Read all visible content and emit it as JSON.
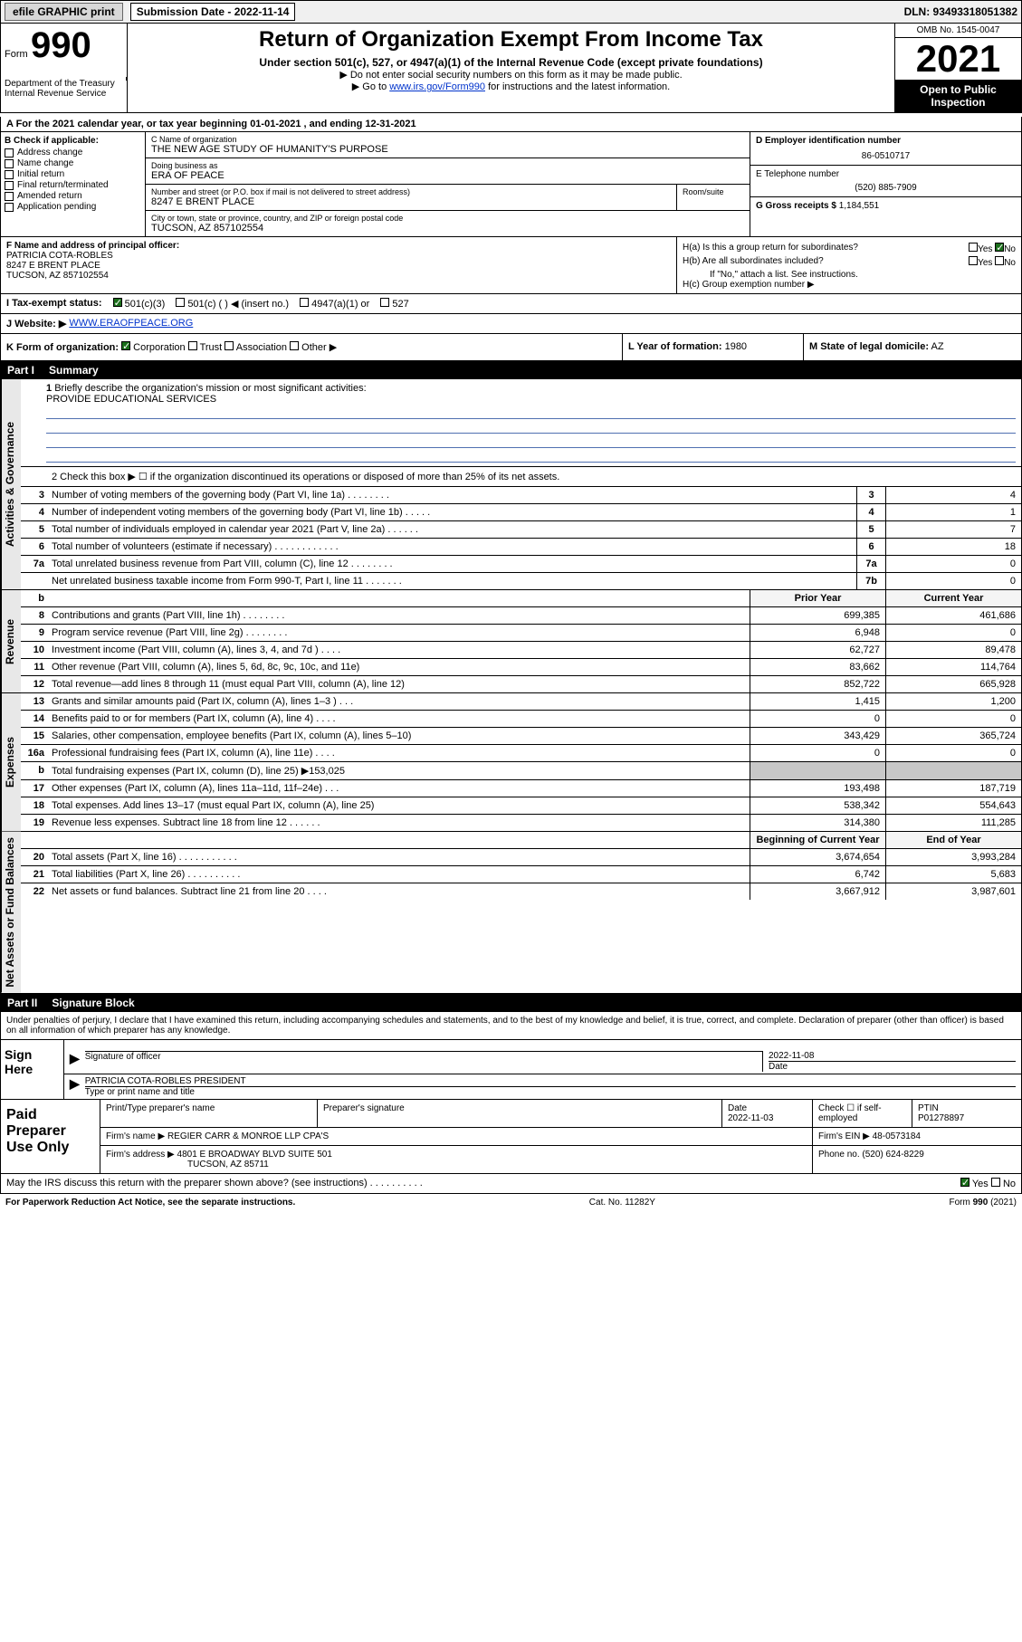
{
  "top": {
    "efile": "efile GRAPHIC print",
    "sub_label": "Submission Date - 2022-11-14",
    "dln": "DLN: 93493318051382"
  },
  "header": {
    "form_word": "Form",
    "form_no": "990",
    "title": "Return of Organization Exempt From Income Tax",
    "sub1": "Under section 501(c), 527, or 4947(a)(1) of the Internal Revenue Code (except private foundations)",
    "sub2": "▶ Do not enter social security numbers on this form as it may be made public.",
    "sub3_pre": "▶ Go to ",
    "sub3_link": "www.irs.gov/Form990",
    "sub3_post": " for instructions and the latest information.",
    "omb": "OMB No. 1545-0047",
    "year": "2021",
    "open": "Open to Public Inspection",
    "dept": "Department of the Treasury\nInternal Revenue Service"
  },
  "line_a": "A For the 2021 calendar year, or tax year beginning 01-01-2021  , and ending 12-31-2021",
  "col_b": {
    "hdr": "B Check if applicable:",
    "items": [
      "Address change",
      "Name change",
      "Initial return",
      "Final return/terminated",
      "Amended return",
      "Application pending"
    ]
  },
  "col_c": {
    "name_lbl": "C Name of organization",
    "name": "THE NEW AGE STUDY OF HUMANITY'S PURPOSE",
    "dba_lbl": "Doing business as",
    "dba": "ERA OF PEACE",
    "addr_lbl": "Number and street (or P.O. box if mail is not delivered to street address)",
    "addr": "8247 E BRENT PLACE",
    "room_lbl": "Room/suite",
    "city_lbl": "City or town, state or province, country, and ZIP or foreign postal code",
    "city": "TUCSON, AZ  857102554"
  },
  "col_de": {
    "d_lbl": "D Employer identification number",
    "d_val": "86-0510717",
    "e_lbl": "E Telephone number",
    "e_val": "(520) 885-7909",
    "g_lbl": "G Gross receipts $",
    "g_val": "1,184,551"
  },
  "f": {
    "lbl": "F Name and address of principal officer:",
    "name": "PATRICIA COTA-ROBLES",
    "addr1": "8247 E BRENT PLACE",
    "addr2": "TUCSON, AZ  857102554"
  },
  "h": {
    "a": "H(a)  Is this a group return for subordinates?",
    "a_yes": "Yes",
    "a_no": "No",
    "b": "H(b)  Are all subordinates included?",
    "b_yes": "Yes",
    "b_no": "No",
    "b_note": "If \"No,\" attach a list. See instructions.",
    "c": "H(c)  Group exemption number ▶"
  },
  "i": {
    "lbl": "I   Tax-exempt status:",
    "o1": "501(c)(3)",
    "o2": "501(c) (  ) ◀ (insert no.)",
    "o3": "4947(a)(1) or",
    "o4": "527"
  },
  "j": {
    "lbl": "J   Website: ▶",
    "val": "WWW.ERAOFPEACE.ORG"
  },
  "k": {
    "lbl": "K Form of organization:",
    "corp": "Corporation",
    "trust": "Trust",
    "assoc": "Association",
    "other": "Other ▶"
  },
  "l": {
    "lbl": "L Year of formation:",
    "val": "1980"
  },
  "m": {
    "lbl": "M State of legal domicile:",
    "val": "AZ"
  },
  "part1": {
    "pn": "Part I",
    "pt": "Summary"
  },
  "brief": {
    "num": "1",
    "q": "Briefly describe the organization's mission or most significant activities:",
    "a": "PROVIDE EDUCATIONAL SERVICES"
  },
  "note2": "2  Check this box ▶ ☐  if the organization discontinued its operations or disposed of more than 25% of its net assets.",
  "side": {
    "gov": "Activities & Governance",
    "rev": "Revenue",
    "exp": "Expenses",
    "net": "Net Assets or Fund Balances"
  },
  "gov_rows": [
    {
      "n": "3",
      "d": "Number of voting members of the governing body (Part VI, line 1a)   .   .   .   .   .   .   .   .",
      "b": "3",
      "v": "4"
    },
    {
      "n": "4",
      "d": "Number of independent voting members of the governing body (Part VI, line 1b)   .   .   .   .   .",
      "b": "4",
      "v": "1"
    },
    {
      "n": "5",
      "d": "Total number of individuals employed in calendar year 2021 (Part V, line 2a)   .   .   .   .   .   .",
      "b": "5",
      "v": "7"
    },
    {
      "n": "6",
      "d": "Total number of volunteers (estimate if necessary)   .   .   .   .   .   .   .   .   .   .   .   .",
      "b": "6",
      "v": "18"
    },
    {
      "n": "7a",
      "d": "Total unrelated business revenue from Part VIII, column (C), line 12   .   .   .   .   .   .   .   .",
      "b": "7a",
      "v": "0"
    },
    {
      "n": "",
      "d": "Net unrelated business taxable income from Form 990-T, Part I, line 11   .   .   .   .   .   .   .",
      "b": "7b",
      "v": "0"
    }
  ],
  "rev_hdr": {
    "py": "Prior Year",
    "cy": "Current Year"
  },
  "rev_rows": [
    {
      "n": "8",
      "d": "Contributions and grants (Part VIII, line 1h)   .   .   .   .   .   .   .   .",
      "py": "699,385",
      "cy": "461,686"
    },
    {
      "n": "9",
      "d": "Program service revenue (Part VIII, line 2g)   .   .   .   .   .   .   .   .",
      "py": "6,948",
      "cy": "0"
    },
    {
      "n": "10",
      "d": "Investment income (Part VIII, column (A), lines 3, 4, and 7d )   .   .   .   .",
      "py": "62,727",
      "cy": "89,478"
    },
    {
      "n": "11",
      "d": "Other revenue (Part VIII, column (A), lines 5, 6d, 8c, 9c, 10c, and 11e)",
      "py": "83,662",
      "cy": "114,764"
    },
    {
      "n": "12",
      "d": "Total revenue—add lines 8 through 11 (must equal Part VIII, column (A), line 12)",
      "py": "852,722",
      "cy": "665,928"
    }
  ],
  "exp_rows": [
    {
      "n": "13",
      "d": "Grants and similar amounts paid (Part IX, column (A), lines 1–3 )   .   .   .",
      "py": "1,415",
      "cy": "1,200"
    },
    {
      "n": "14",
      "d": "Benefits paid to or for members (Part IX, column (A), line 4)   .   .   .   .",
      "py": "0",
      "cy": "0"
    },
    {
      "n": "15",
      "d": "Salaries, other compensation, employee benefits (Part IX, column (A), lines 5–10)",
      "py": "343,429",
      "cy": "365,724"
    },
    {
      "n": "16a",
      "d": "Professional fundraising fees (Part IX, column (A), line 11e)   .   .   .   .",
      "py": "0",
      "cy": "0"
    },
    {
      "n": "b",
      "d": "Total fundraising expenses (Part IX, column (D), line 25) ▶153,025",
      "py": "",
      "cy": "",
      "shade": true
    },
    {
      "n": "17",
      "d": "Other expenses (Part IX, column (A), lines 11a–11d, 11f–24e)   .   .   .",
      "py": "193,498",
      "cy": "187,719"
    },
    {
      "n": "18",
      "d": "Total expenses. Add lines 13–17 (must equal Part IX, column (A), line 25)",
      "py": "538,342",
      "cy": "554,643"
    },
    {
      "n": "19",
      "d": "Revenue less expenses. Subtract line 18 from line 12   .   .   .   .   .   .",
      "py": "314,380",
      "cy": "111,285"
    }
  ],
  "net_hdr": {
    "py": "Beginning of Current Year",
    "cy": "End of Year"
  },
  "net_rows": [
    {
      "n": "20",
      "d": "Total assets (Part X, line 16)   .   .   .   .   .   .   .   .   .   .   .",
      "py": "3,674,654",
      "cy": "3,993,284"
    },
    {
      "n": "21",
      "d": "Total liabilities (Part X, line 26)   .   .   .   .   .   .   .   .   .   .",
      "py": "6,742",
      "cy": "5,683"
    },
    {
      "n": "22",
      "d": "Net assets or fund balances. Subtract line 21 from line 20   .   .   .   .",
      "py": "3,667,912",
      "cy": "3,987,601"
    }
  ],
  "part2": {
    "pn": "Part II",
    "pt": "Signature Block"
  },
  "sig": {
    "decl": "Under penalties of perjury, I declare that I have examined this return, including accompanying schedules and statements, and to the best of my knowledge and belief, it is true, correct, and complete. Declaration of preparer (other than officer) is based on all information of which preparer has any knowledge.",
    "sign_here": "Sign Here",
    "sig_off": "Signature of officer",
    "date_lbl": "Date",
    "date_val": "2022-11-08",
    "name_title": "PATRICIA COTA-ROBLES  PRESIDENT",
    "type_name": "Type or print name and title"
  },
  "prep": {
    "label": "Paid Preparer Use Only",
    "h1": "Print/Type preparer's name",
    "h2": "Preparer's signature",
    "h3": "Date",
    "date": "2022-11-03",
    "h4": "Check ☐ if self-employed",
    "h5": "PTIN",
    "ptin": "P01278897",
    "firm_name_lbl": "Firm's name   ▶",
    "firm_name": "REGIER CARR & MONROE LLP CPA'S",
    "firm_ein_lbl": "Firm's EIN ▶",
    "firm_ein": "48-0573184",
    "firm_addr_lbl": "Firm's address ▶",
    "firm_addr1": "4801 E BROADWAY BLVD SUITE 501",
    "firm_addr2": "TUCSON, AZ  85711",
    "phone_lbl": "Phone no.",
    "phone": "(520) 624-8229"
  },
  "may": {
    "q": "May the IRS discuss this return with the preparer shown above? (see instructions)   .   .   .   .   .   .   .   .   .   .",
    "yes": "Yes",
    "no": "No"
  },
  "footer": {
    "pra": "For Paperwork Reduction Act Notice, see the separate instructions.",
    "cat": "Cat. No. 11282Y",
    "form": "Form 990 (2021)"
  },
  "colors": {
    "link": "#0033cc",
    "check_green": "#1a6e1a",
    "shade": "#c8c8c8"
  }
}
